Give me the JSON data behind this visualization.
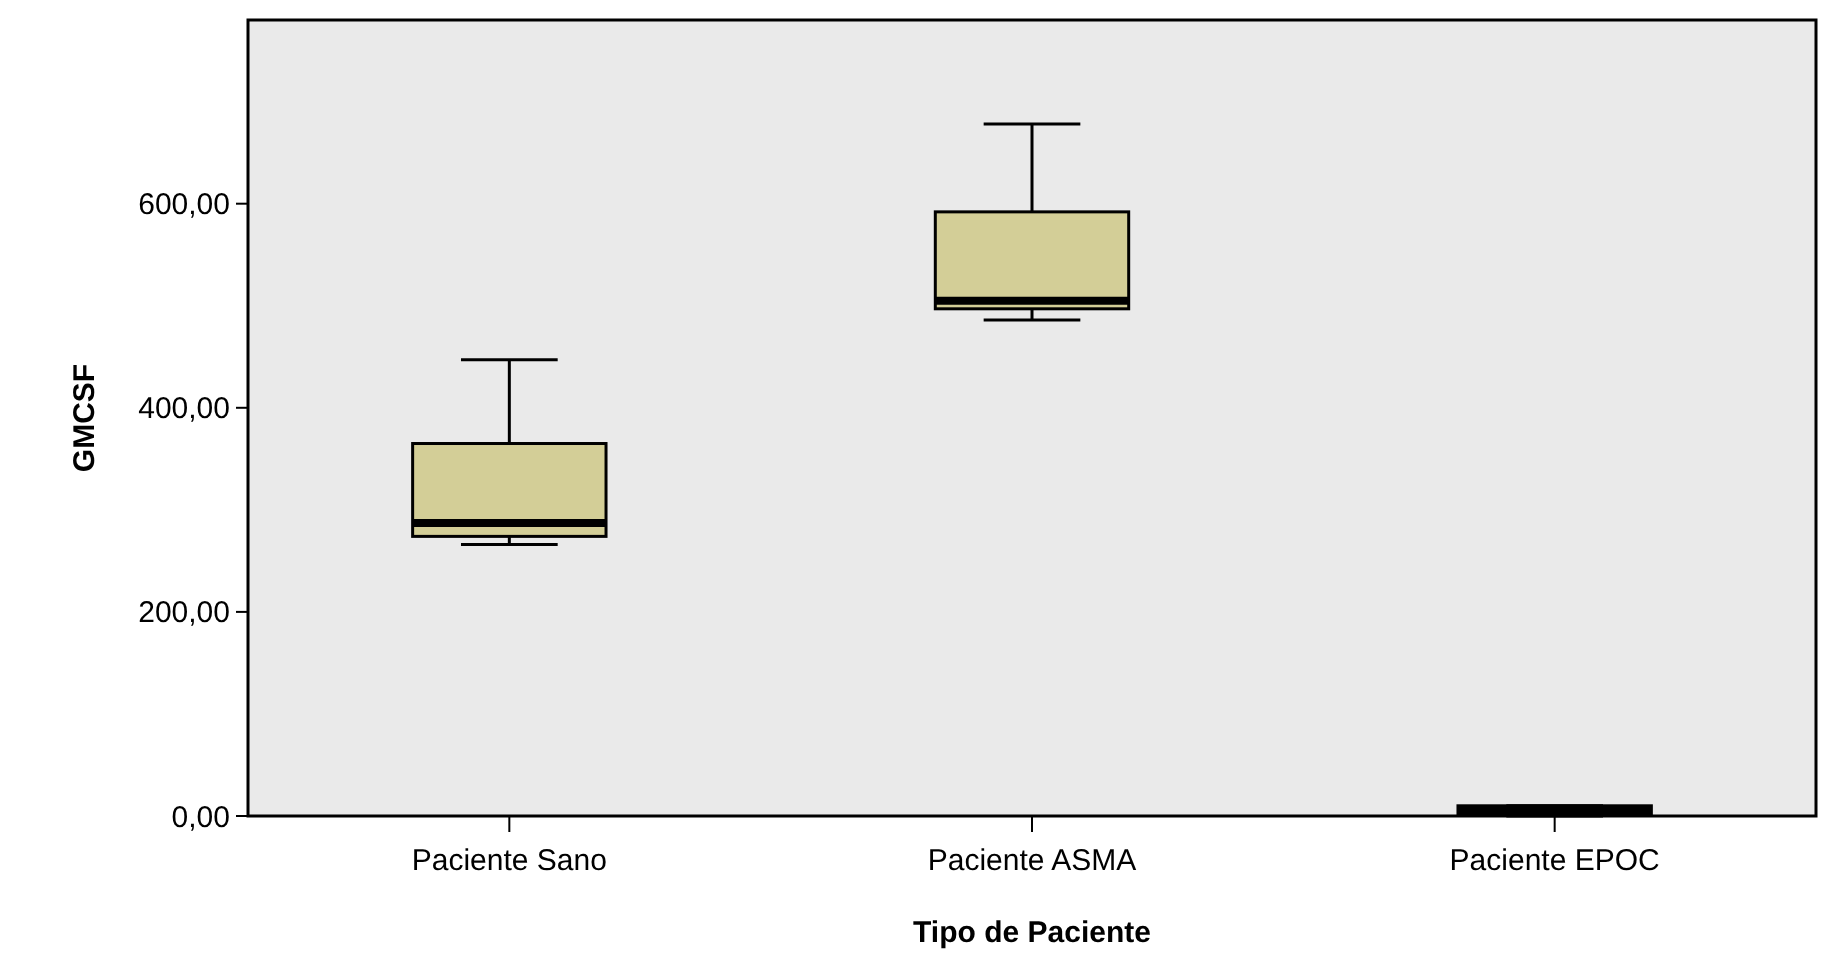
{
  "chart_data": {
    "type": "box",
    "xlabel": "Tipo de Paciente",
    "ylabel": "GMCSF",
    "categories": [
      "Paciente Sano",
      "Paciente ASMA",
      "Paciente EPOC"
    ],
    "boxes": [
      {
        "low": 266,
        "q1": 274,
        "median": 287,
        "q3": 365,
        "high": 447
      },
      {
        "low": 486,
        "q1": 497,
        "median": 505,
        "q3": 592,
        "high": 678
      },
      {
        "low": 0,
        "q1": 1,
        "median": 5,
        "q3": 10,
        "high": 10
      }
    ],
    "color": "#d3ce97",
    "ylim": [
      0,
      780
    ],
    "yticks": [
      {
        "value": 0,
        "label": "0,00"
      },
      {
        "value": 200,
        "label": "200,00"
      },
      {
        "value": 400,
        "label": "400,00"
      },
      {
        "value": 600,
        "label": "600,00"
      }
    ],
    "grid": false
  }
}
